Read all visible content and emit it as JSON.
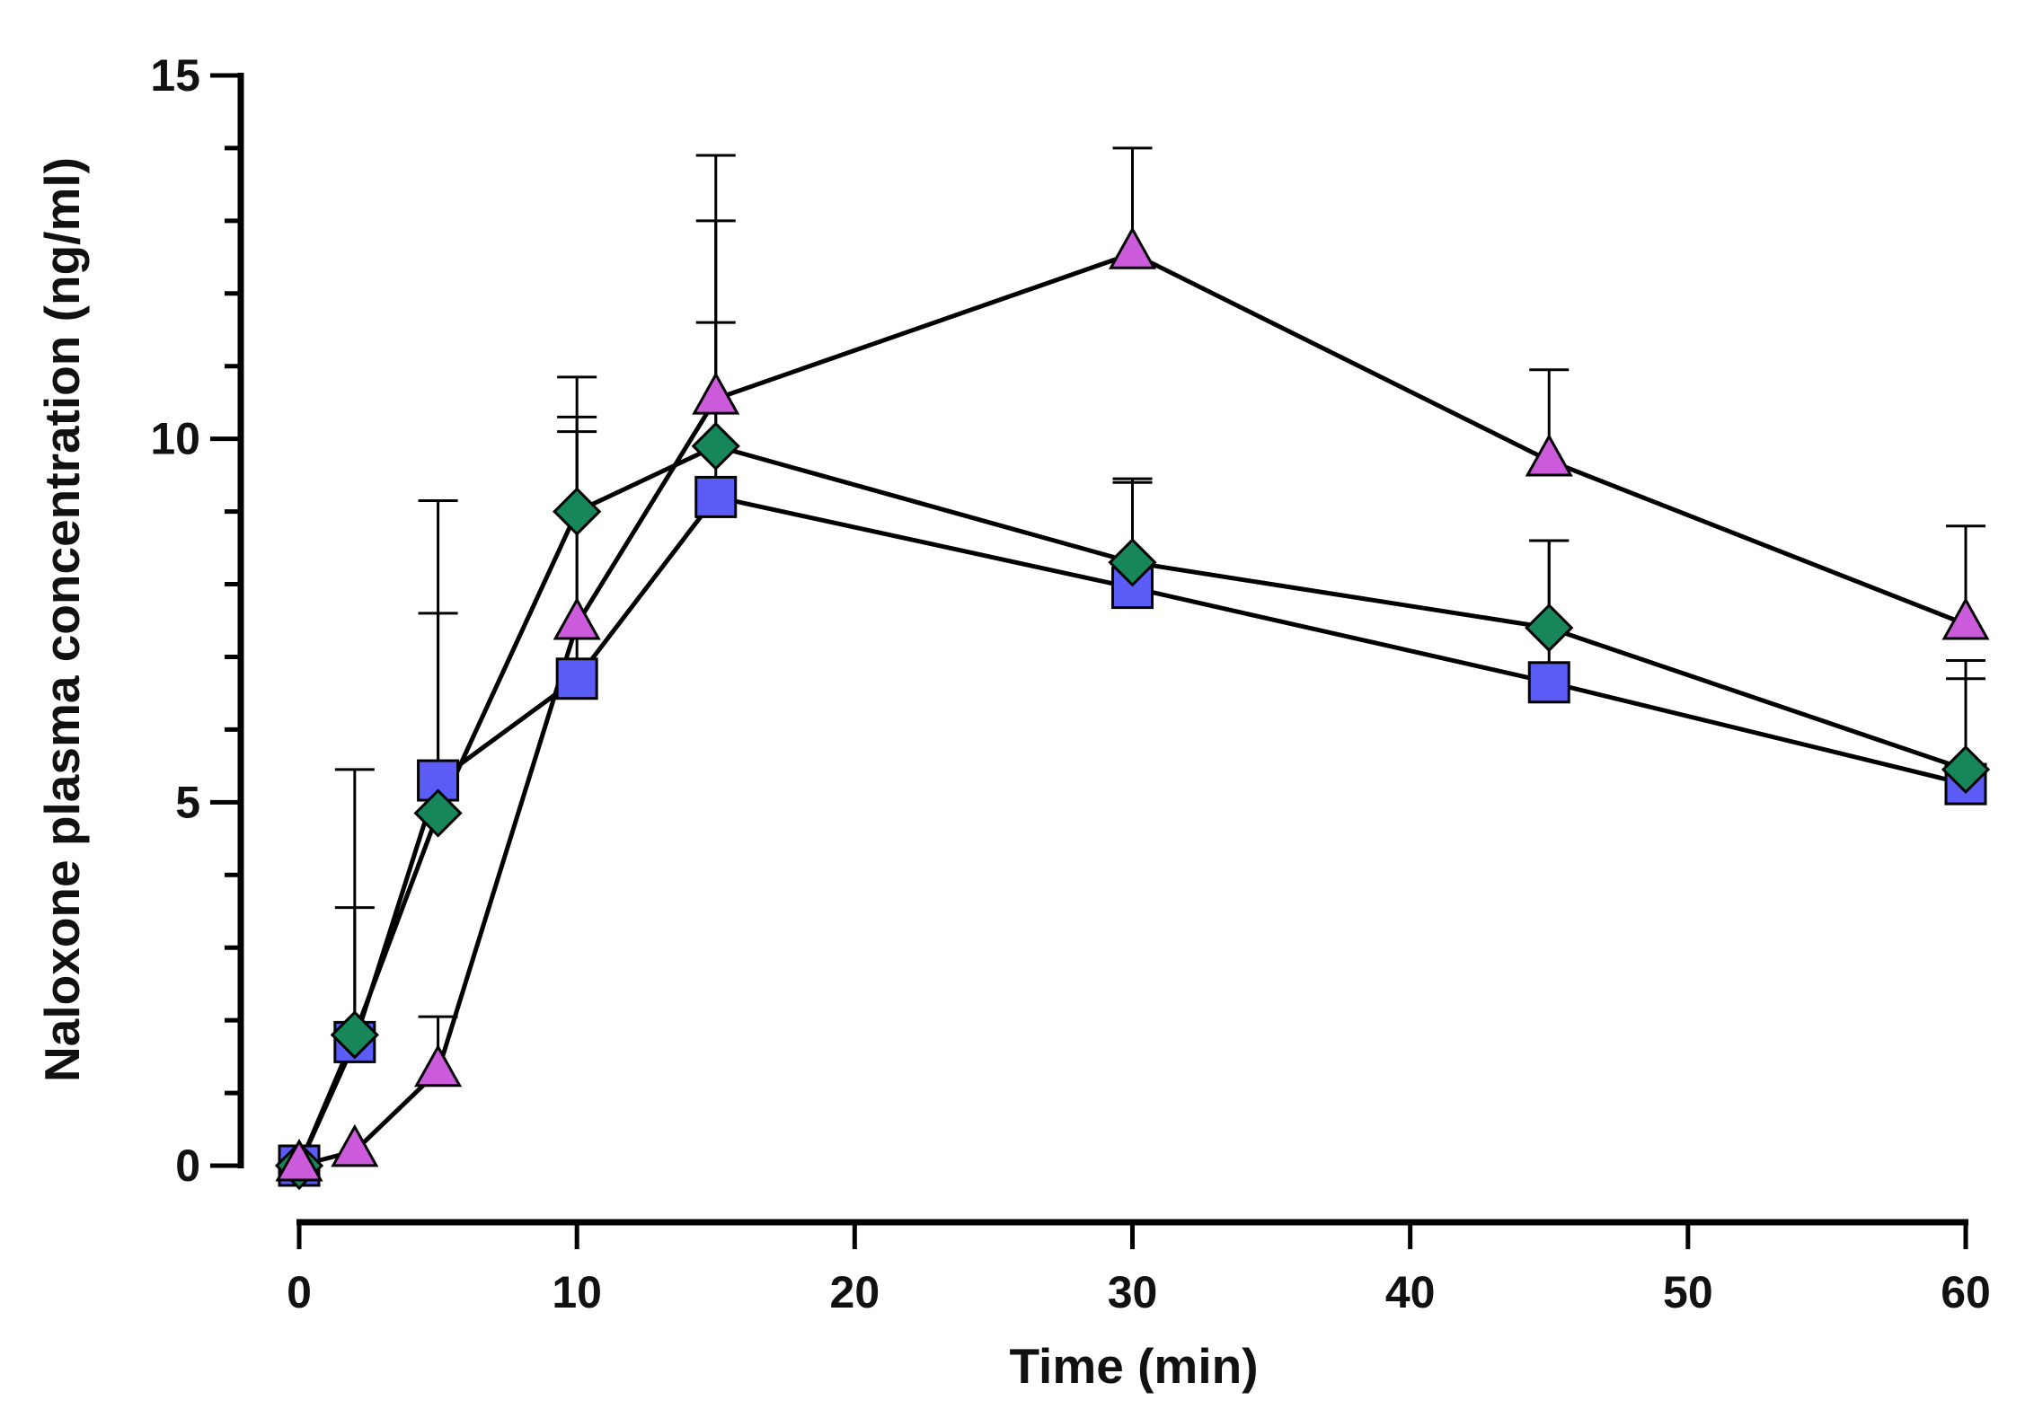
{
  "chart_data": {
    "type": "line",
    "title": "",
    "xlabel": "Time (min)",
    "ylabel": "Naloxone plasma concentration (ng/ml)",
    "xlim": [
      0,
      60
    ],
    "ylim": [
      0,
      15
    ],
    "xticks": [
      0,
      10,
      20,
      30,
      40,
      50,
      60
    ],
    "yticks": [
      0,
      5,
      10,
      15
    ],
    "grid": false,
    "legend": "none",
    "x": [
      0,
      2,
      5,
      10,
      15,
      30,
      45,
      60
    ],
    "series": [
      {
        "name": "square",
        "marker": "square",
        "color": "#5a5cf5",
        "values": [
          0,
          1.7,
          5.3,
          6.7,
          9.2,
          7.95,
          6.65,
          5.25
        ],
        "error_upper": [
          0,
          3.55,
          7.6,
          10.1,
          11.6,
          9.4,
          8.6,
          6.7
        ]
      },
      {
        "name": "diamond",
        "marker": "diamond",
        "color": "#17875a",
        "values": [
          0,
          1.8,
          4.85,
          9.0,
          9.9,
          8.3,
          7.4,
          5.45
        ],
        "error_upper": [
          0,
          5.45,
          9.15,
          10.85,
          13.0,
          9.45,
          8.6,
          6.95
        ]
      },
      {
        "name": "triangle",
        "marker": "triangle",
        "color": "#cc5bdb",
        "values": [
          0,
          0.2,
          1.3,
          7.45,
          10.55,
          12.55,
          9.7,
          7.45
        ],
        "error_upper": [
          0,
          0.2,
          2.05,
          10.3,
          13.9,
          14.0,
          10.95,
          8.8
        ]
      }
    ]
  }
}
